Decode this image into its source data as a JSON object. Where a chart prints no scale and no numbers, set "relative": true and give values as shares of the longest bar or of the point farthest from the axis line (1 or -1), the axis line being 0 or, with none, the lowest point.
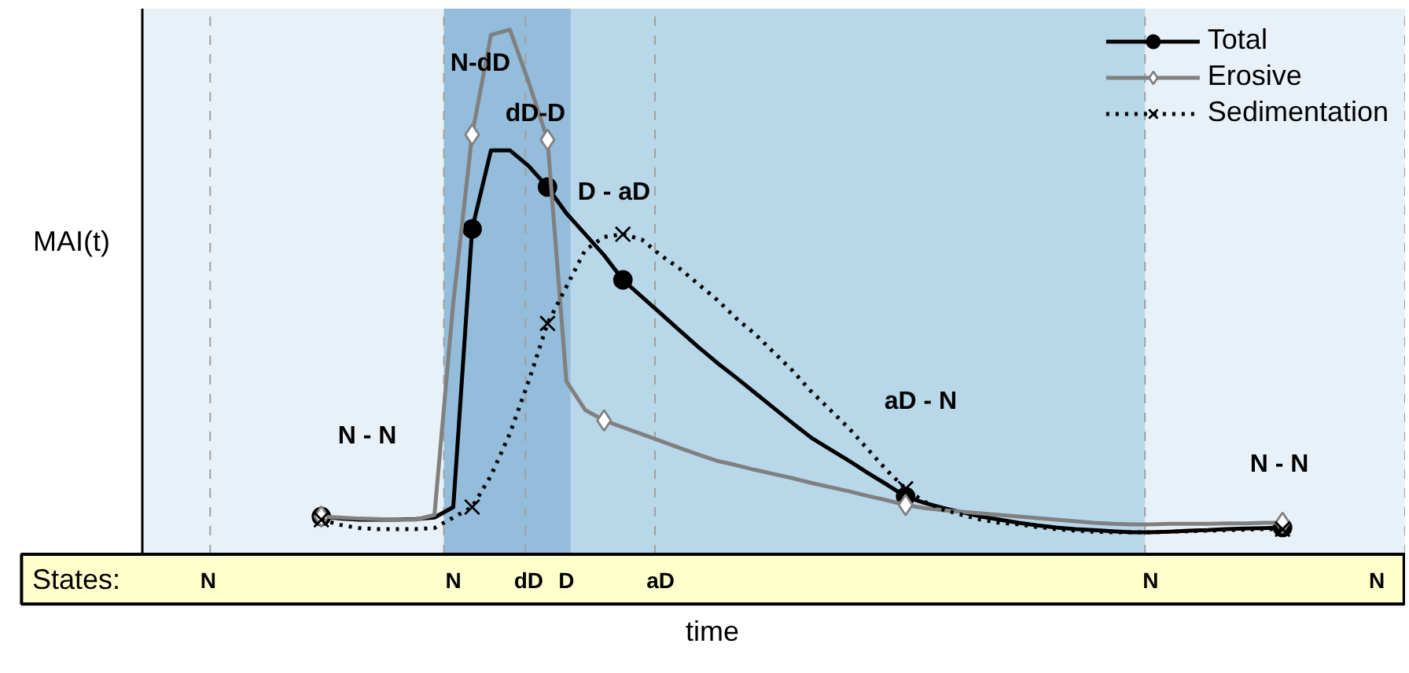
{
  "chart_data": {
    "type": "line",
    "relative": true,
    "xlabel": "time",
    "ylabel": "MAI(t)",
    "categories": [
      null,
      null,
      null,
      "N",
      null,
      null,
      null,
      null,
      null,
      null,
      null,
      null,
      null,
      null,
      null,
      null,
      "N",
      null,
      null,
      null,
      "dD",
      null,
      "D",
      null,
      null,
      null,
      null,
      "aD",
      null,
      null,
      null,
      null,
      null,
      null,
      null,
      null,
      null,
      null,
      null,
      null,
      null,
      null,
      null,
      null,
      null,
      null,
      null,
      null,
      null,
      null,
      null,
      null,
      null,
      "N",
      null,
      null,
      null,
      null,
      null,
      null,
      null,
      null,
      null,
      null,
      null,
      "N",
      null
    ],
    "grid": false,
    "legend": "top right",
    "annotations": [
      "States:",
      "N - N",
      "N-dD",
      "dD-D",
      "D - aD",
      "aD - N",
      "N - N"
    ],
    "series": [
      {
        "name": "Total",
        "color": "#000000",
        "line_style": "solid",
        "values": [
          null,
          null,
          null,
          null,
          null,
          null,
          null,
          null,
          null,
          0.072,
          0.068,
          0.066,
          0.066,
          0.066,
          0.067,
          0.07,
          0.09,
          0.62,
          0.77,
          0.77,
          0.74,
          0.7,
          0.65,
          0.61,
          0.57,
          0.523,
          0.491,
          0.459,
          0.427,
          0.395,
          0.365,
          0.337,
          0.308,
          0.279,
          0.25,
          0.222,
          0.2,
          0.178,
          0.155,
          0.133,
          0.11,
          0.098,
          0.088,
          0.08,
          0.072,
          0.066,
          0.06,
          0.055,
          0.051,
          0.048,
          0.046,
          0.044,
          0.042,
          0.042,
          0.043,
          0.045,
          0.046,
          0.048,
          0.049,
          0.05,
          0.051,
          null,
          null,
          null,
          null,
          null,
          null
        ]
      },
      {
        "type": "scatter",
        "color": "#000000",
        "marker": "circle",
        "values": [
          null,
          null,
          null,
          null,
          null,
          null,
          null,
          null,
          null,
          0.072,
          null,
          null,
          null,
          null,
          null,
          null,
          null,
          0.62,
          null,
          null,
          null,
          0.7,
          null,
          null,
          null,
          0.523,
          null,
          null,
          null,
          null,
          null,
          null,
          null,
          null,
          null,
          null,
          null,
          null,
          null,
          null,
          0.11,
          null,
          null,
          null,
          null,
          null,
          null,
          null,
          null,
          null,
          null,
          null,
          null,
          null,
          null,
          null,
          null,
          null,
          null,
          null,
          0.051,
          null,
          null,
          null,
          null,
          null,
          null
        ]
      },
      {
        "name": "Erosive",
        "color": "#808080",
        "line_style": "solid",
        "values": [
          null,
          null,
          null,
          null,
          null,
          null,
          null,
          null,
          null,
          0.072,
          0.07,
          0.068,
          0.067,
          0.066,
          0.066,
          0.075,
          0.48,
          0.8,
          0.99,
          1.0,
          0.9,
          0.79,
          0.33,
          0.275,
          0.255,
          0.242,
          0.229,
          0.216,
          0.203,
          0.19,
          0.178,
          0.17,
          0.161,
          0.153,
          0.145,
          0.136,
          0.128,
          0.12,
          0.111,
          0.103,
          0.094,
          0.088,
          0.084,
          0.081,
          0.078,
          0.075,
          0.072,
          0.069,
          0.066,
          0.063,
          0.06,
          0.058,
          0.057,
          0.057,
          0.058,
          0.058,
          0.058,
          0.059,
          0.059,
          0.06,
          0.06,
          null,
          null,
          null,
          null,
          null,
          null
        ]
      },
      {
        "type": "scatter",
        "color": "#808080",
        "marker": "diamond",
        "values": [
          null,
          null,
          null,
          null,
          null,
          null,
          null,
          null,
          null,
          0.072,
          null,
          null,
          null,
          null,
          null,
          null,
          null,
          0.8,
          null,
          null,
          null,
          0.79,
          null,
          null,
          0.255,
          null,
          null,
          null,
          null,
          null,
          null,
          null,
          null,
          null,
          null,
          null,
          null,
          null,
          null,
          null,
          0.094,
          null,
          null,
          null,
          null,
          null,
          null,
          null,
          null,
          null,
          null,
          null,
          null,
          null,
          null,
          null,
          null,
          null,
          null,
          null,
          0.06,
          null,
          null,
          null,
          null,
          null,
          null
        ]
      },
      {
        "name": "Sedimentation",
        "color": "#000000",
        "line_style": "dotted",
        "values": [
          null,
          null,
          null,
          null,
          null,
          null,
          null,
          null,
          null,
          0.066,
          0.056,
          0.05,
          0.048,
          0.048,
          0.048,
          0.05,
          0.07,
          0.09,
          0.15,
          0.23,
          0.33,
          0.44,
          0.51,
          0.58,
          0.605,
          0.61,
          0.6,
          0.57,
          0.545,
          0.515,
          0.485,
          0.45,
          0.42,
          0.385,
          0.35,
          0.31,
          0.275,
          0.24,
          0.2,
          0.16,
          0.125,
          0.1,
          0.085,
          0.075,
          0.066,
          0.06,
          0.057,
          0.052,
          0.048,
          0.045,
          0.043,
          0.042,
          0.042,
          0.042,
          0.043,
          0.044,
          0.045,
          0.046,
          0.047,
          0.048,
          0.048,
          null,
          null,
          null,
          null,
          null,
          null
        ]
      },
      {
        "type": "scatter",
        "color": "#000000",
        "marker": "cross",
        "values": [
          null,
          null,
          null,
          null,
          null,
          null,
          null,
          null,
          null,
          0.066,
          null,
          null,
          null,
          null,
          null,
          null,
          null,
          0.09,
          null,
          null,
          null,
          0.44,
          null,
          null,
          null,
          0.61,
          null,
          null,
          null,
          null,
          null,
          null,
          null,
          null,
          null,
          null,
          null,
          null,
          null,
          null,
          0.125,
          null,
          null,
          null,
          null,
          null,
          null,
          null,
          null,
          null,
          null,
          null,
          null,
          null,
          null,
          null,
          null,
          null,
          null,
          null,
          0.048,
          null,
          null,
          null,
          null,
          null,
          null
        ]
      }
    ]
  }
}
